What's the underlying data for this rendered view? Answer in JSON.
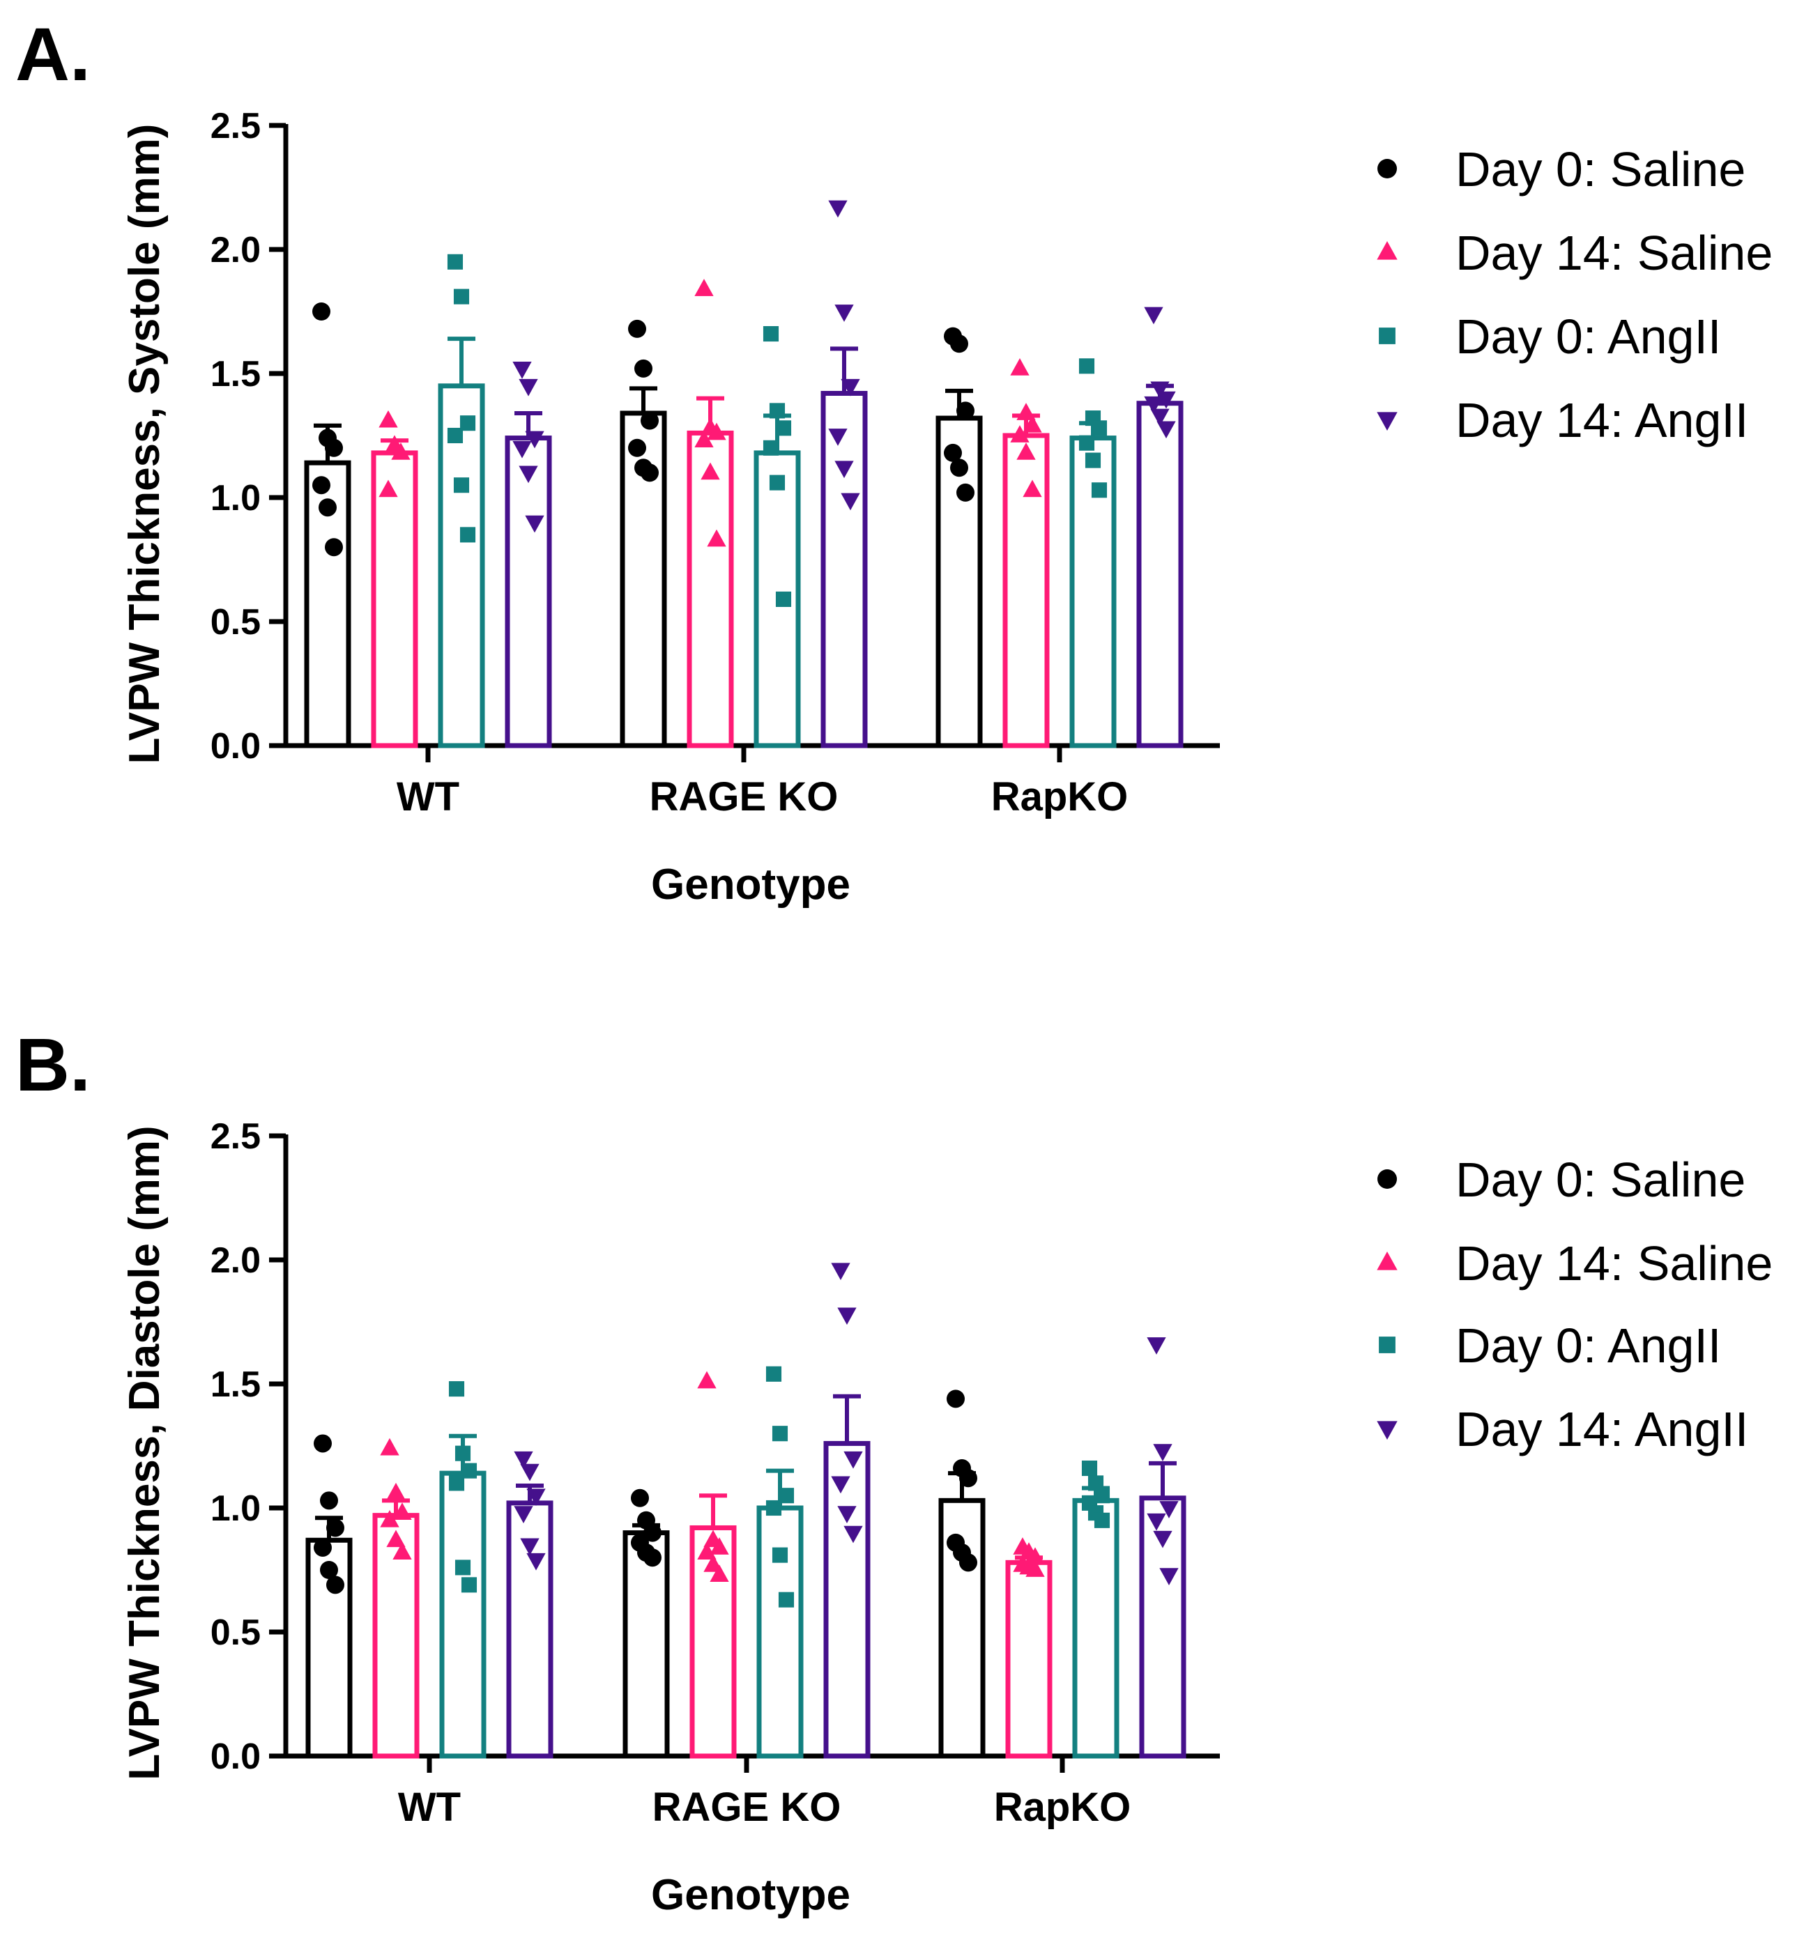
{
  "colors": {
    "Day 0: Saline": "#000000",
    "Day 14: Saline": "#ff1a75",
    "Day 0: AngII": "#138080",
    "Day 14: AngII": "#45108c"
  },
  "chart_data": [
    {
      "panel_label": "A.",
      "type": "bar",
      "xlabel": "Genotype",
      "ylabel": "LVPW Thickness, Systole (mm)",
      "ylim": [
        0,
        2.5
      ],
      "yticks": [
        "0.0",
        "0.5",
        "1.0",
        "1.5",
        "2.0",
        "2.5"
      ],
      "categories": [
        "WT",
        "RAGE KO",
        "RapKO"
      ],
      "legend_position": "right",
      "series": [
        {
          "name": "Day 0: Saline",
          "marker": "circle",
          "values": [
            1.14,
            1.34,
            1.32
          ],
          "sem": [
            0.15,
            0.1,
            0.11
          ],
          "points": [
            [
              1.75,
              1.24,
              1.2,
              1.05,
              0.96,
              0.8
            ],
            [
              1.68,
              1.52,
              1.31,
              1.2,
              1.12,
              1.1
            ],
            [
              1.65,
              1.62,
              1.35,
              1.18,
              1.12,
              1.02
            ]
          ]
        },
        {
          "name": "Day 14: Saline",
          "marker": "triangle-up",
          "values": [
            1.18,
            1.26,
            1.25
          ],
          "sem": [
            0.05,
            0.14,
            0.08
          ],
          "points": [
            [
              1.31,
              1.21,
              1.18,
              1.03
            ],
            [
              1.84,
              1.28,
              1.26,
              1.23,
              1.1,
              0.83
            ],
            [
              1.52,
              1.34,
              1.29,
              1.25,
              1.18,
              1.03
            ]
          ]
        },
        {
          "name": "Day 0: AngII",
          "marker": "square",
          "values": [
            1.45,
            1.18,
            1.24
          ],
          "sem": [
            0.19,
            0.15,
            0.06
          ],
          "points": [
            [
              1.95,
              1.81,
              1.3,
              1.25,
              1.05,
              0.85
            ],
            [
              1.66,
              1.35,
              1.28,
              1.2,
              1.06,
              0.59
            ],
            [
              1.53,
              1.32,
              1.28,
              1.22,
              1.15,
              1.03
            ]
          ]
        },
        {
          "name": "Day 14: AngII",
          "marker": "triangle-down",
          "values": [
            1.24,
            1.42,
            1.38
          ],
          "sem": [
            0.1,
            0.18,
            0.07
          ],
          "points": [
            [
              1.52,
              1.45,
              1.24,
              1.2,
              1.1,
              0.9
            ],
            [
              2.17,
              1.75,
              1.45,
              1.25,
              1.12,
              0.99
            ],
            [
              1.74,
              1.44,
              1.4,
              1.38,
              1.33,
              1.28
            ]
          ]
        }
      ]
    },
    {
      "panel_label": "B.",
      "type": "bar",
      "xlabel": "Genotype",
      "ylabel": "LVPW Thickness, Diastole (mm)",
      "ylim": [
        0,
        2.5
      ],
      "yticks": [
        "0.0",
        "0.5",
        "1.0",
        "1.5",
        "2.0",
        "2.5"
      ],
      "categories": [
        "WT",
        "RAGE KO",
        "RapKO"
      ],
      "legend_position": "right",
      "series": [
        {
          "name": "Day 0: Saline",
          "marker": "circle",
          "values": [
            0.87,
            0.9,
            1.03
          ],
          "sem": [
            0.09,
            0.03,
            0.11
          ],
          "points": [
            [
              1.26,
              1.03,
              0.92,
              0.84,
              0.75,
              0.69
            ],
            [
              1.04,
              0.95,
              0.9,
              0.86,
              0.82,
              0.8
            ],
            [
              1.44,
              1.16,
              1.12,
              0.86,
              0.82,
              0.78
            ]
          ]
        },
        {
          "name": "Day 14: Saline",
          "marker": "triangle-up",
          "values": [
            0.97,
            0.92,
            0.78
          ],
          "sem": [
            0.06,
            0.13,
            0.02
          ],
          "points": [
            [
              1.24,
              1.06,
              0.98,
              0.95,
              0.87,
              0.82
            ],
            [
              1.51,
              0.87,
              0.84,
              0.82,
              0.77,
              0.73
            ],
            [
              0.84,
              0.82,
              0.8,
              0.77,
              0.76,
              0.75
            ]
          ]
        },
        {
          "name": "Day 0: AngII",
          "marker": "square",
          "values": [
            1.14,
            1.0,
            1.03
          ],
          "sem": [
            0.15,
            0.15,
            0.05
          ],
          "points": [
            [
              1.48,
              1.22,
              1.15,
              1.1,
              0.76,
              0.69
            ],
            [
              1.54,
              1.3,
              1.05,
              1.0,
              0.81,
              0.63
            ],
            [
              1.16,
              1.1,
              1.05,
              1.02,
              0.98,
              0.95
            ]
          ]
        },
        {
          "name": "Day 14: AngII",
          "marker": "triangle-down",
          "values": [
            1.02,
            1.26,
            1.04
          ],
          "sem": [
            0.07,
            0.19,
            0.14
          ],
          "points": [
            [
              1.2,
              1.15,
              1.05,
              0.98,
              0.85,
              0.79
            ],
            [
              1.96,
              1.78,
              1.2,
              1.1,
              0.98,
              0.9
            ],
            [
              1.66,
              1.23,
              1.0,
              0.95,
              0.88,
              0.73
            ]
          ]
        }
      ]
    }
  ]
}
